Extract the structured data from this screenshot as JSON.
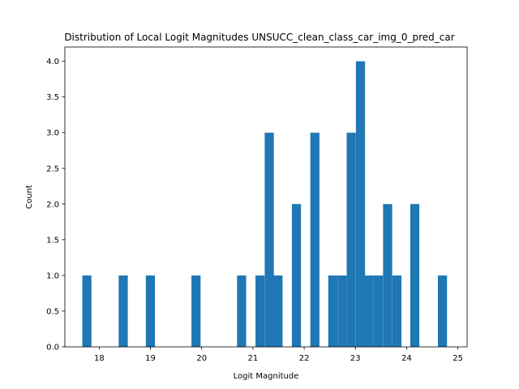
{
  "chart_data": {
    "type": "bar",
    "title": "Distribution of Local Logit Magnitudes UNSUCC_clean_class_car_img_0_pred_car",
    "xlabel": "Logit Magnitude",
    "ylabel": "Count",
    "xlim": [
      17.33,
      25.18
    ],
    "ylim": [
      0,
      4.2
    ],
    "xticks": [
      "18",
      "19",
      "20",
      "21",
      "22",
      "23",
      "24",
      "25"
    ],
    "yticks": [
      "0.0",
      "0.5",
      "1.0",
      "1.5",
      "2.0",
      "2.5",
      "3.0",
      "3.5",
      "4.0"
    ],
    "bar_color": "#1f77b4",
    "bin_width": 0.178,
    "bins": [
      {
        "start": 17.67,
        "count": 1
      },
      {
        "start": 18.38,
        "count": 1
      },
      {
        "start": 18.91,
        "count": 1
      },
      {
        "start": 19.8,
        "count": 1
      },
      {
        "start": 20.69,
        "count": 1
      },
      {
        "start": 21.05,
        "count": 1
      },
      {
        "start": 21.23,
        "count": 3
      },
      {
        "start": 21.4,
        "count": 1
      },
      {
        "start": 21.76,
        "count": 2
      },
      {
        "start": 22.12,
        "count": 3
      },
      {
        "start": 22.47,
        "count": 1
      },
      {
        "start": 22.65,
        "count": 1
      },
      {
        "start": 22.83,
        "count": 3
      },
      {
        "start": 23.01,
        "count": 4
      },
      {
        "start": 23.18,
        "count": 1
      },
      {
        "start": 23.36,
        "count": 1
      },
      {
        "start": 23.54,
        "count": 2
      },
      {
        "start": 23.72,
        "count": 1
      },
      {
        "start": 24.07,
        "count": 2
      },
      {
        "start": 24.61,
        "count": 1
      }
    ]
  }
}
